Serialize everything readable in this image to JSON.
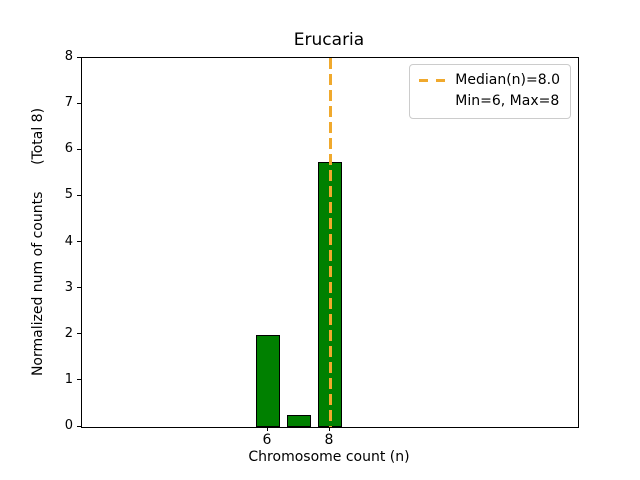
{
  "chart_data": {
    "type": "bar",
    "title": "Erucaria",
    "xlabel": "Chromosome count (n)",
    "ylabel": "Normalized num of counts      (Total 8)",
    "categories": [
      6,
      7,
      8
    ],
    "values": [
      2.0,
      0.25,
      5.75
    ],
    "total": 8,
    "xlim": [
      0,
      16
    ],
    "ylim": [
      0,
      8
    ],
    "yticks": [
      0,
      1,
      2,
      3,
      4,
      5,
      6,
      7,
      8
    ],
    "xticks": [
      6,
      8
    ],
    "bar_width": 0.8,
    "bar_color": "#008000",
    "bar_edge_color": "#000000",
    "grid": false,
    "median_line": {
      "x": 8.0,
      "color": "#f0a92d",
      "style": "dashed"
    },
    "legend": {
      "position": "upper right",
      "entries": [
        {
          "label": "Median(n)=8.0",
          "swatch": "dashed-line"
        },
        {
          "label": "Min=6, Max=8",
          "swatch": "none"
        }
      ]
    }
  }
}
